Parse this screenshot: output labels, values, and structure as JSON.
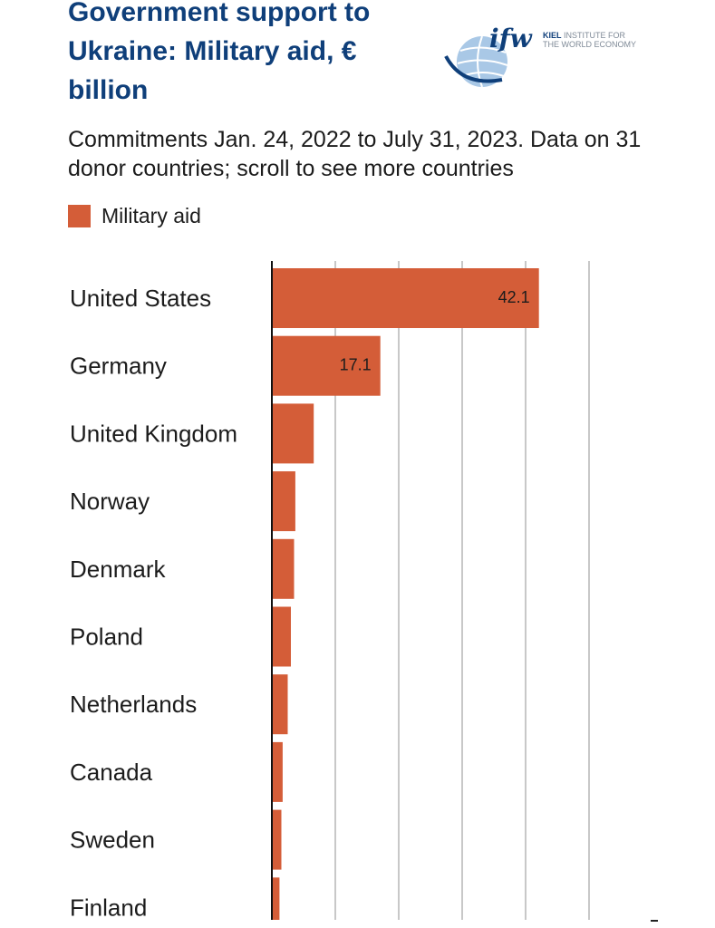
{
  "header": {
    "title": "Government support to Ukraine: Military aid, € billion",
    "subtitle": "Commitments Jan. 24, 2022 to July 31, 2023. Data on 31 donor countries; scroll to see more countries"
  },
  "logo": {
    "mark": "ifw",
    "line1_bold": "KIEL",
    "line1_rest": " INSTITUTE FOR",
    "line2": "THE WORLD ECONOMY"
  },
  "colors": {
    "bar": "#d45d38",
    "title": "#0f3f7a",
    "grid": "#b5b5b5",
    "text": "#1c1c1c"
  },
  "chart_data": {
    "type": "bar",
    "orientation": "horizontal",
    "title": "Government support to Ukraine: Military aid, € billion",
    "legend": [
      {
        "name": "Military aid",
        "color": "#d45d38"
      }
    ],
    "xlim": [
      0,
      50
    ],
    "x_gridlines": [
      10,
      20,
      30,
      40,
      50
    ],
    "categories": [
      "United States",
      "Germany",
      "United Kingdom",
      "Norway",
      "Denmark",
      "Poland",
      "Netherlands",
      "Canada",
      "Sweden",
      "Finland"
    ],
    "series": [
      {
        "name": "Military aid",
        "values": [
          42.1,
          17.1,
          6.6,
          3.7,
          3.5,
          3.0,
          2.5,
          1.7,
          1.5,
          1.2
        ],
        "data_labels": [
          "42.1",
          "17.1",
          "",
          "",
          "",
          "",
          "",
          "",
          "",
          ""
        ]
      }
    ]
  }
}
